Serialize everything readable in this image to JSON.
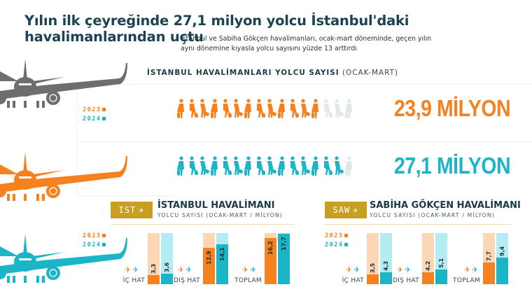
{
  "header": {
    "title_line1": "Yılın ilk çeyreğinde 27,1 milyon yolcu İstanbul'daki",
    "title_line2": "havalimanlarından uçtu",
    "subtitle_line1": "İstanbul ve Sabiha Gökçen havalimanları, ocak-mart döneminde, geçen yılın",
    "subtitle_line2": "aynı dönemine kıyasla yolcu sayısını yüzde 13 arttırdı"
  },
  "overview": {
    "title_bold": "İSTANBUL HAVALİMANLARI YOLCU SAYISI",
    "title_light": "(OCAK-MART)",
    "legend": [
      {
        "label": "2023",
        "color": "#f5821f"
      },
      {
        "label": "2024",
        "color": "#1ab5c6"
      }
    ],
    "rows": [
      {
        "year": "2023",
        "value_label": "23,9 MİLYON",
        "color": "#f5821f",
        "filled_icons": 13,
        "faded_icons": 3
      },
      {
        "year": "2024",
        "value_label": "27,1 MİLYON",
        "color": "#1ab5c6",
        "filled_icons": 15,
        "faded_icons": 1
      }
    ]
  },
  "airports": [
    {
      "code": "IST",
      "name": "İSTANBUL HAVALİMANI",
      "subtitle": "YOLCU SAYISI (OCAK-MART / MİLYON)",
      "legend": [
        "2023",
        "2024"
      ],
      "categories": [
        {
          "label": "İÇ HAT",
          "v2023": "3,3",
          "v2024": "3,6"
        },
        {
          "label": "DIŞ HAT",
          "v2023": "12,9",
          "v2024": "14,1"
        },
        {
          "label": "TOPLAM",
          "v2023": "16,2",
          "v2024": "17,7"
        }
      ]
    },
    {
      "code": "SAW",
      "name": "SABİHA GÖKÇEN HAVALİMANI",
      "subtitle": "YOLCU SAYISI (OCAK-MART / MİLYON)",
      "legend": [
        "2023",
        "2024"
      ],
      "categories": [
        {
          "label": "İÇ HAT",
          "v2023": "3,5",
          "v2024": "4,3"
        },
        {
          "label": "DIŞ HAT",
          "v2023": "4,2",
          "v2024": "5,1"
        },
        {
          "label": "TOPLAM",
          "v2023": "7,7",
          "v2024": "9,4"
        }
      ]
    }
  ],
  "colors": {
    "title": "#1b4452",
    "orange": "#f5821f",
    "orange_light": "#fbd7b5",
    "teal": "#1ab5c6",
    "teal_light": "#b3ecf2",
    "gold": "#c99f22",
    "gray_plane": "#6d6e70"
  },
  "icons": {
    "badge_icon": "airplane-icon",
    "departure_icon": "plane-departure-icon",
    "arrival_icon": "plane-arrival-icon",
    "passenger_icon": "passenger-with-luggage-icon"
  },
  "chart_data": [
    {
      "type": "pictogram",
      "title": "İSTANBUL HAVALİMANLARI YOLCU SAYISI (OCAK-MART)",
      "categories": [
        "2023",
        "2024"
      ],
      "values": [
        23.9,
        27.1
      ],
      "unit": "milyon",
      "value_labels": [
        "23,9 MİLYON",
        "27,1 MİLYON"
      ]
    },
    {
      "type": "bar",
      "title": "İSTANBUL HAVALİMANI",
      "subtitle": "YOLCU SAYISI (OCAK-MART / MİLYON)",
      "categories": [
        "İÇ HAT",
        "DIŞ HAT",
        "TOPLAM"
      ],
      "series": [
        {
          "name": "2023",
          "values": [
            3.3,
            12.9,
            16.2
          ],
          "color": "#f5821f"
        },
        {
          "name": "2024",
          "values": [
            3.6,
            14.1,
            17.7
          ],
          "color": "#1ab5c6"
        }
      ],
      "ylim": [
        0,
        18
      ],
      "legend_position": "left"
    },
    {
      "type": "bar",
      "title": "SABİHA GÖKÇEN HAVALİMANI",
      "subtitle": "YOLCU SAYISI (OCAK-MART / MİLYON)",
      "categories": [
        "İÇ HAT",
        "DIŞ HAT",
        "TOPLAM"
      ],
      "series": [
        {
          "name": "2023",
          "values": [
            3.5,
            4.2,
            7.7
          ],
          "color": "#f5821f"
        },
        {
          "name": "2024",
          "values": [
            4.3,
            5.1,
            9.4
          ],
          "color": "#1ab5c6"
        }
      ],
      "ylim": [
        0,
        18
      ],
      "legend_position": "left"
    }
  ]
}
